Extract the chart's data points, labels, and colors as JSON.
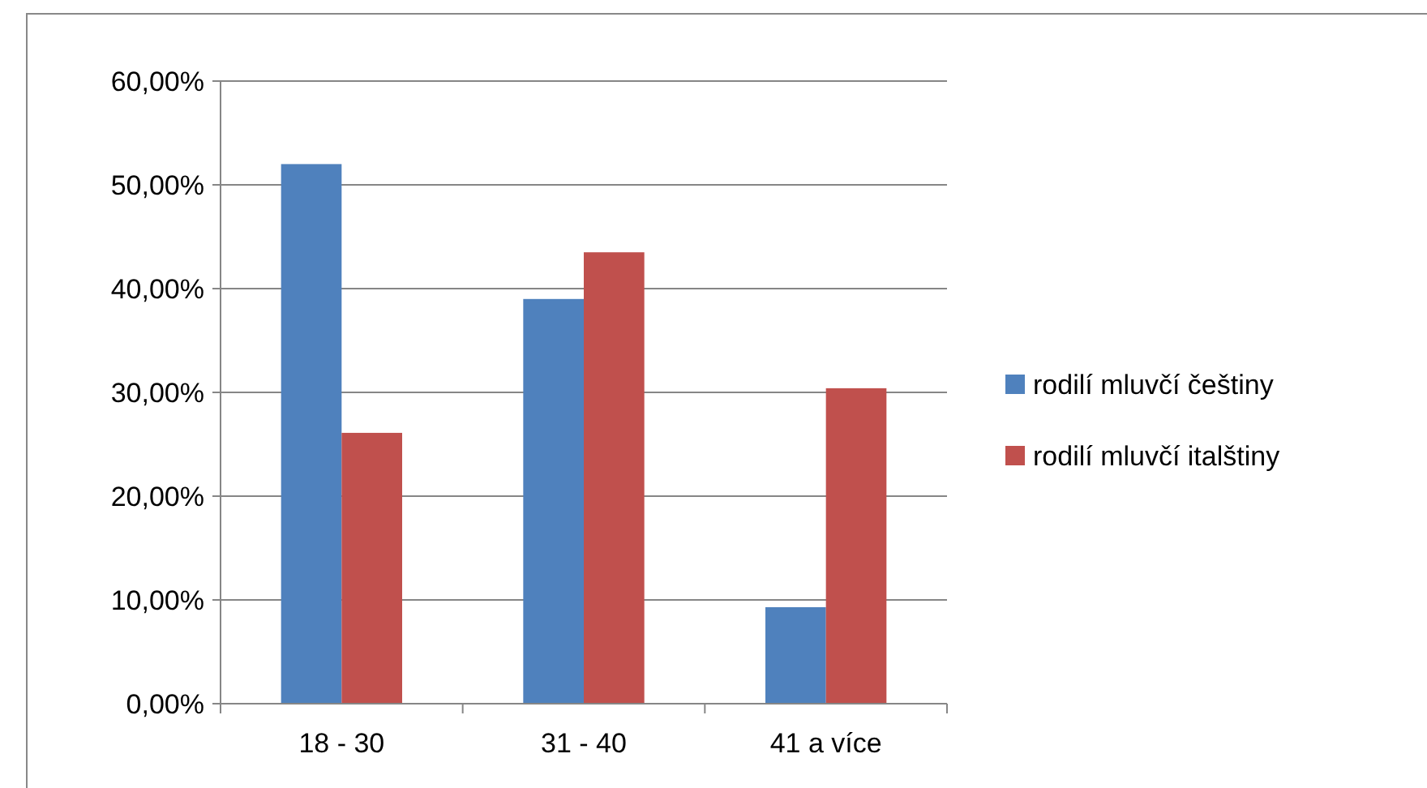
{
  "chart_data": {
    "type": "bar",
    "categories": [
      "18 - 30",
      "31 - 40",
      "41 a více"
    ],
    "series": [
      {
        "name": "rodilí mluvčí češtiny",
        "color": "#4f81bd",
        "values": [
          52,
          39,
          9.3
        ]
      },
      {
        "name": "rodilí mluvčí italštiny",
        "color": "#c0504d",
        "values": [
          26.1,
          43.5,
          30.4
        ]
      }
    ],
    "ylim": [
      0,
      60
    ],
    "yticks": [
      {
        "value": 0,
        "label": "0,00%"
      },
      {
        "value": 10,
        "label": "10,00%"
      },
      {
        "value": 20,
        "label": "20,00%"
      },
      {
        "value": 30,
        "label": "30,00%"
      },
      {
        "value": 40,
        "label": "40,00%"
      },
      {
        "value": 50,
        "label": "50,00%"
      },
      {
        "value": 60,
        "label": "60,00%"
      }
    ],
    "grid": "y",
    "legend": "right"
  }
}
